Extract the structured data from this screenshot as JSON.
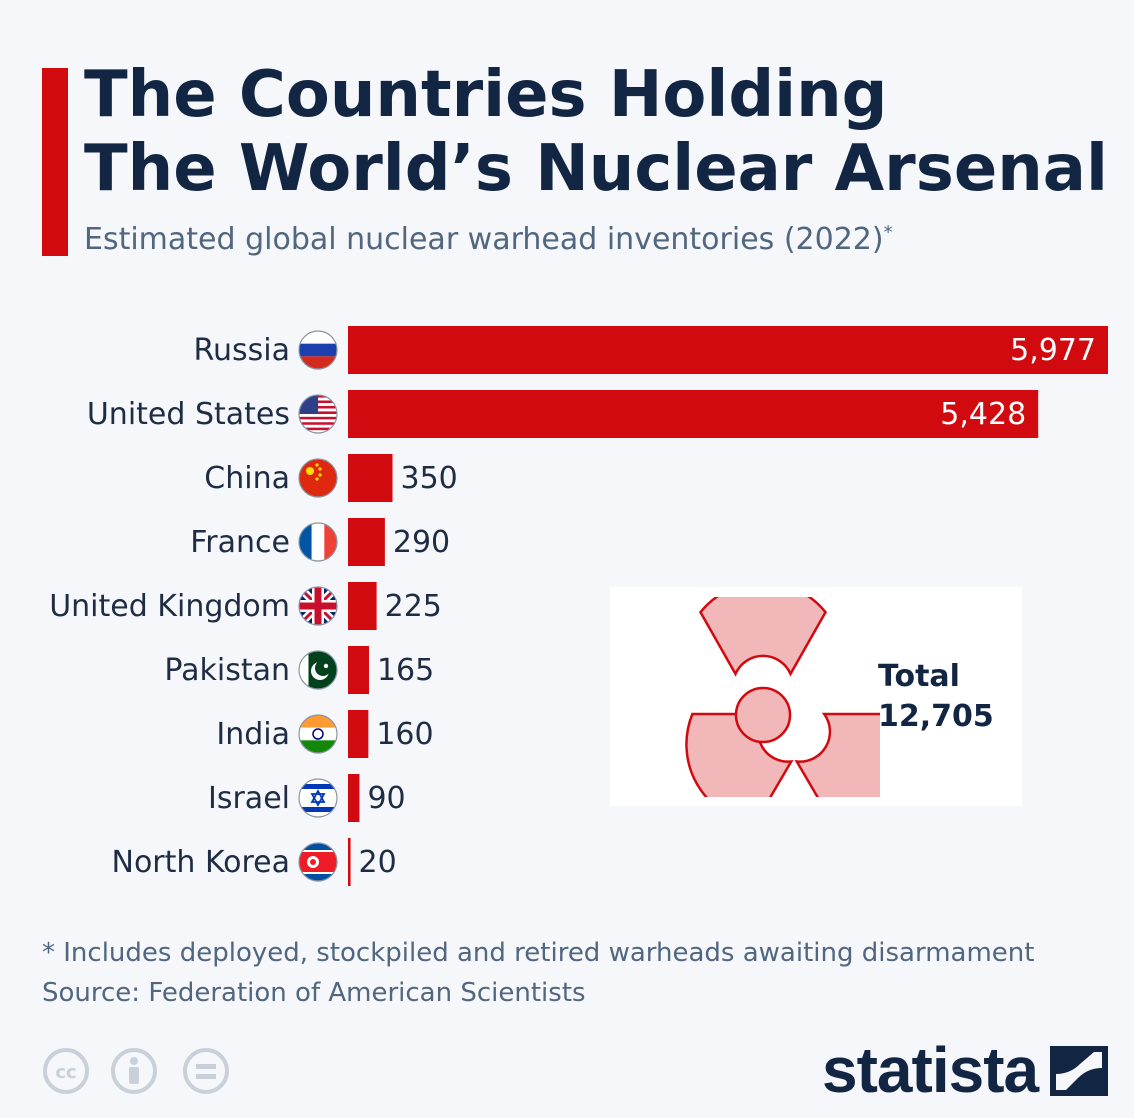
{
  "header": {
    "title_line1": "The Countries Holding",
    "title_line2": "The World’s Nuclear Arsenal",
    "subtitle": "Estimated global nuclear warhead inventories (2022)",
    "subtitle_mark": "*"
  },
  "colors": {
    "accent": "#d10a10",
    "bar": "#d10a10",
    "title": "#122643",
    "subtext": "#51667f",
    "background": "#f5f7fa"
  },
  "chart_data": {
    "type": "bar",
    "orientation": "horizontal",
    "categories": [
      "Russia",
      "United States",
      "China",
      "France",
      "United Kingdom",
      "Pakistan",
      "India",
      "Israel",
      "North Korea"
    ],
    "values": [
      5977,
      5428,
      350,
      290,
      225,
      165,
      160,
      90,
      20
    ],
    "value_labels": [
      "5,977",
      "5,428",
      "350",
      "290",
      "225",
      "165",
      "160",
      "90",
      "20"
    ],
    "flag_icons": [
      "flag-russia-icon",
      "flag-united-states-icon",
      "flag-china-icon",
      "flag-france-icon",
      "flag-united-kingdom-icon",
      "flag-pakistan-icon",
      "flag-india-icon",
      "flag-israel-icon",
      "flag-north-korea-icon"
    ],
    "xlim": [
      0,
      5977
    ],
    "grid": false,
    "legend": "none"
  },
  "total": {
    "label": "Total",
    "value": "12,705",
    "icon": "radiation-icon"
  },
  "footer": {
    "footnote": "* Includes deployed, stockpiled and retired warheads awaiting disarmament",
    "source": "Source: Federation of American Scientists",
    "license_icons": [
      "cc-icon",
      "attribution-icon",
      "no-derivatives-icon"
    ],
    "brand": "statista"
  }
}
